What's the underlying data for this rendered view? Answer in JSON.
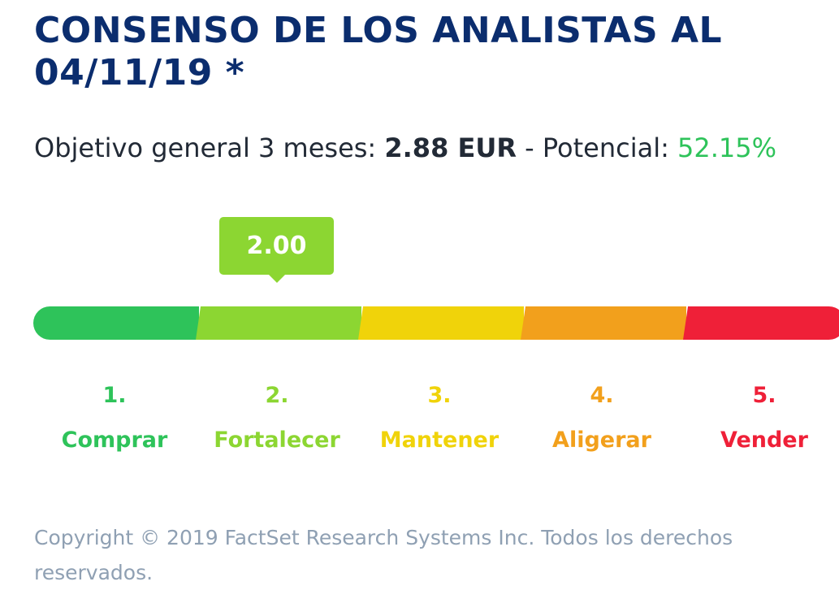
{
  "title": "CONSENSO DE LOS ANALISTAS AL 04/11/19 *",
  "objective": {
    "label": "Objetivo general 3 meses: ",
    "value": "2.88 EUR",
    "separator": " - Potencial: ",
    "potential": "52.15%"
  },
  "consensus": {
    "score_label": "2.00",
    "score": 2.0,
    "scale_min": 1,
    "scale_max": 5
  },
  "scale": [
    {
      "number": "1.",
      "label": "Comprar",
      "color": "#2ec35a"
    },
    {
      "number": "2.",
      "label": "Fortalecer",
      "color": "#8cd632"
    },
    {
      "number": "3.",
      "label": "Mantener",
      "color": "#f0d30a"
    },
    {
      "number": "4.",
      "label": "Aligerar",
      "color": "#f2a01c"
    },
    {
      "number": "5.",
      "label": "Vender",
      "color": "#ef2038"
    }
  ],
  "copyright": "Copyright © 2019 FactSet Research Systems Inc. Todos los derechos reservados.",
  "colors": {
    "title": "#0b2d6e",
    "text": "#222a36",
    "potential": "#2ec35a",
    "bubble": "#8cd632",
    "copyright": "#8fa0b3"
  }
}
